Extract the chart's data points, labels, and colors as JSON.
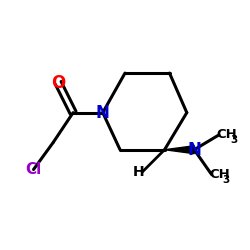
{
  "bg_color": "#ffffff",
  "bond_color": "#000000",
  "N_color": "#0000cd",
  "O_color": "#ff0000",
  "Cl_color": "#9900cc",
  "figsize": [
    2.5,
    2.5
  ],
  "dpi": 100,
  "xlim": [
    0,
    10
  ],
  "ylim": [
    0,
    10
  ]
}
